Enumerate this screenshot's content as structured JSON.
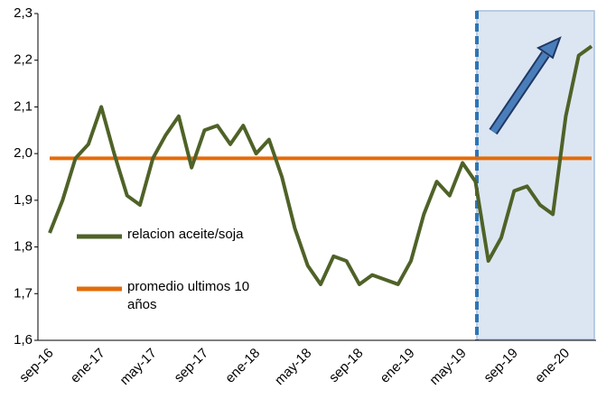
{
  "chart_data": {
    "type": "line",
    "categories": [
      "sep-16",
      null,
      null,
      null,
      "ene-17",
      null,
      null,
      null,
      "may-17",
      null,
      null,
      null,
      "sep-17",
      null,
      null,
      null,
      "ene-18",
      null,
      null,
      null,
      "may-18",
      null,
      null,
      null,
      "sep-18",
      null,
      null,
      null,
      "ene-19",
      null,
      null,
      null,
      "may-19",
      null,
      null,
      null,
      "sep-19",
      null,
      null,
      null,
      "ene-20",
      null,
      null
    ],
    "series": [
      {
        "name": "relacion aceite/soja",
        "color": "#4f6228",
        "values": [
          1.83,
          1.9,
          1.99,
          2.02,
          2.1,
          2.0,
          1.91,
          1.89,
          1.99,
          2.04,
          2.08,
          1.97,
          2.05,
          2.06,
          2.02,
          2.06,
          2.0,
          2.03,
          1.95,
          1.84,
          1.76,
          1.72,
          1.78,
          1.77,
          1.72,
          1.74,
          1.73,
          1.72,
          1.77,
          1.87,
          1.94,
          1.91,
          1.98,
          1.94,
          1.77,
          1.82,
          1.92,
          1.93,
          1.89,
          1.87,
          2.08,
          2.21,
          2.23
        ]
      },
      {
        "name": "promedio ultimos 10 años",
        "color": "#e36c0a",
        "values": [
          1.99,
          1.99,
          1.99,
          1.99,
          1.99,
          1.99,
          1.99,
          1.99,
          1.99,
          1.99,
          1.99,
          1.99,
          1.99,
          1.99,
          1.99,
          1.99,
          1.99,
          1.99,
          1.99,
          1.99,
          1.99,
          1.99,
          1.99,
          1.99,
          1.99,
          1.99,
          1.99,
          1.99,
          1.99,
          1.99,
          1.99,
          1.99,
          1.99,
          1.99,
          1.99,
          1.99,
          1.99,
          1.99,
          1.99,
          1.99,
          1.99,
          1.99,
          1.99
        ]
      }
    ],
    "ylim": [
      1.6,
      2.3
    ],
    "yticks": [
      {
        "value": 1.6,
        "label": "1,6"
      },
      {
        "value": 1.7,
        "label": "1,7"
      },
      {
        "value": 1.8,
        "label": "1,8"
      },
      {
        "value": 1.9,
        "label": "1,9"
      },
      {
        "value": 2.0,
        "label": "2,0"
      },
      {
        "value": 2.1,
        "label": "2,1"
      },
      {
        "value": 2.2,
        "label": "2,2"
      },
      {
        "value": 2.3,
        "label": "2,3"
      }
    ],
    "grid": false
  }
}
